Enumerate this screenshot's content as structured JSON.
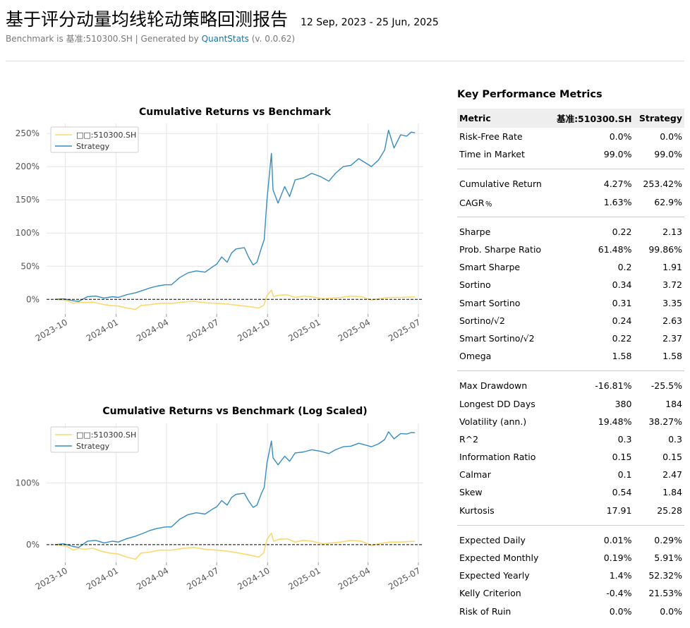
{
  "header": {
    "title": "基于评分动量均线轮动策略回测报告",
    "dates": "12 Sep, 2023 - 25 Jun, 2025",
    "subtitle_prefix": "Benchmark is 基准:510300.SH | Generated by ",
    "subtitle_link": "QuantStats",
    "subtitle_suffix": " (v. 0.0.62)"
  },
  "colors": {
    "benchmark": "#fcd86e",
    "strategy": "#348dc1",
    "grid": "#e5e5e5"
  },
  "metrics": {
    "title": "Key Performance Metrics",
    "columns": [
      "Metric",
      "基准:510300.SH",
      "Strategy"
    ],
    "groups": [
      [
        [
          "Risk-Free Rate",
          "0.0%",
          "0.0%"
        ],
        [
          "Time in Market",
          "99.0%",
          "99.0%"
        ]
      ],
      [
        [
          "Cumulative Return",
          "4.27%",
          "253.42%"
        ],
        [
          "CAGR﹪",
          "1.63%",
          "62.9%"
        ]
      ],
      [
        [
          "Sharpe",
          "0.22",
          "2.13"
        ],
        [
          "Prob. Sharpe Ratio",
          "61.48%",
          "99.86%"
        ],
        [
          "Smart Sharpe",
          "0.2",
          "1.91"
        ],
        [
          "Sortino",
          "0.34",
          "3.72"
        ],
        [
          "Smart Sortino",
          "0.31",
          "3.35"
        ],
        [
          "Sortino/√2",
          "0.24",
          "2.63"
        ],
        [
          "Smart Sortino/√2",
          "0.22",
          "2.37"
        ],
        [
          "Omega",
          "1.58",
          "1.58"
        ]
      ],
      [
        [
          "Max Drawdown",
          "-16.81%",
          "-25.5%"
        ],
        [
          "Longest DD Days",
          "380",
          "184"
        ],
        [
          "Volatility (ann.)",
          "19.48%",
          "38.27%"
        ],
        [
          "R^2",
          "0.3",
          "0.3"
        ],
        [
          "Information Ratio",
          "0.15",
          "0.15"
        ],
        [
          "Calmar",
          "0.1",
          "2.47"
        ],
        [
          "Skew",
          "0.54",
          "1.84"
        ],
        [
          "Kurtosis",
          "17.91",
          "25.28"
        ]
      ],
      [
        [
          "Expected Daily",
          "0.01%",
          "0.29%"
        ],
        [
          "Expected Monthly",
          "0.19%",
          "5.91%"
        ],
        [
          "Expected Yearly",
          "1.4%",
          "52.32%"
        ],
        [
          "Kelly Criterion",
          "-0.4%",
          "21.53%"
        ],
        [
          "Risk of Ruin",
          "0.0%",
          "0.0%"
        ]
      ]
    ]
  },
  "chart_data": [
    {
      "type": "line",
      "title": "Cumulative Returns vs Benchmark",
      "scale": "linear",
      "xlabel": "",
      "ylabel": "",
      "ylim": [
        -22,
        265
      ],
      "y_ticks": [
        0,
        50,
        100,
        150,
        200,
        250
      ],
      "y_tick_labels": [
        "0%",
        "50%",
        "100%",
        "150%",
        "200%",
        "250%"
      ],
      "x_ticks": [
        "2023-10",
        "2024-01",
        "2024-04",
        "2024-07",
        "2024-10",
        "2025-01",
        "2025-04",
        "2025-07"
      ],
      "x_tick_dates": [
        "2023-10-01",
        "2024-01-01",
        "2024-04-01",
        "2024-07-01",
        "2024-10-01",
        "2025-01-01",
        "2025-04-01",
        "2025-07-01"
      ],
      "xlim": [
        "2023-08-28",
        "2025-07-10"
      ],
      "legend": "top-left",
      "grid": true,
      "baseline": 0,
      "series": [
        {
          "name": "□□:510300.SH",
          "color": "#fcd86e",
          "points": [
            [
              "2023-09-12",
              0
            ],
            [
              "2023-09-25",
              -1
            ],
            [
              "2023-10-05",
              -2
            ],
            [
              "2023-10-15",
              -6
            ],
            [
              "2023-10-25",
              -4
            ],
            [
              "2023-11-05",
              -5
            ],
            [
              "2023-11-20",
              -4
            ],
            [
              "2023-12-05",
              -7
            ],
            [
              "2023-12-20",
              -9
            ],
            [
              "2024-01-05",
              -10
            ],
            [
              "2024-01-20",
              -13
            ],
            [
              "2024-02-05",
              -15
            ],
            [
              "2024-02-15",
              -9
            ],
            [
              "2024-03-01",
              -8
            ],
            [
              "2024-03-20",
              -6
            ],
            [
              "2024-04-10",
              -6
            ],
            [
              "2024-05-01",
              -4
            ],
            [
              "2024-05-20",
              -3
            ],
            [
              "2024-06-10",
              -5
            ],
            [
              "2024-07-01",
              -6
            ],
            [
              "2024-07-20",
              -7
            ],
            [
              "2024-08-10",
              -9
            ],
            [
              "2024-08-30",
              -11
            ],
            [
              "2024-09-15",
              -13
            ],
            [
              "2024-09-24",
              -9
            ],
            [
              "2024-09-30",
              6
            ],
            [
              "2024-10-08",
              14
            ],
            [
              "2024-10-12",
              4
            ],
            [
              "2024-10-20",
              6
            ],
            [
              "2024-11-05",
              7
            ],
            [
              "2024-11-20",
              3
            ],
            [
              "2024-12-05",
              5
            ],
            [
              "2024-12-20",
              4
            ],
            [
              "2025-01-10",
              1
            ],
            [
              "2025-01-25",
              2
            ],
            [
              "2025-02-10",
              3
            ],
            [
              "2025-03-01",
              5
            ],
            [
              "2025-03-20",
              4
            ],
            [
              "2025-04-07",
              -1
            ],
            [
              "2025-04-20",
              1
            ],
            [
              "2025-05-10",
              3
            ],
            [
              "2025-05-30",
              3
            ],
            [
              "2025-06-25",
              4
            ]
          ]
        },
        {
          "name": "Strategy",
          "color": "#348dc1",
          "points": [
            [
              "2023-09-12",
              0
            ],
            [
              "2023-09-28",
              1
            ],
            [
              "2023-10-15",
              -2
            ],
            [
              "2023-10-25",
              -3
            ],
            [
              "2023-11-10",
              4
            ],
            [
              "2023-11-25",
              5
            ],
            [
              "2023-12-10",
              2
            ],
            [
              "2023-12-25",
              4
            ],
            [
              "2024-01-05",
              3
            ],
            [
              "2024-01-20",
              7
            ],
            [
              "2024-02-05",
              10
            ],
            [
              "2024-02-20",
              14
            ],
            [
              "2024-03-01",
              17
            ],
            [
              "2024-03-15",
              20
            ],
            [
              "2024-03-30",
              22
            ],
            [
              "2024-04-10",
              22
            ],
            [
              "2024-04-25",
              33
            ],
            [
              "2024-05-10",
              40
            ],
            [
              "2024-05-25",
              43
            ],
            [
              "2024-06-10",
              41
            ],
            [
              "2024-06-25",
              50
            ],
            [
              "2024-07-01",
              53
            ],
            [
              "2024-07-10",
              64
            ],
            [
              "2024-07-20",
              56
            ],
            [
              "2024-07-28",
              70
            ],
            [
              "2024-08-05",
              76
            ],
            [
              "2024-08-20",
              78
            ],
            [
              "2024-08-28",
              63
            ],
            [
              "2024-09-05",
              52
            ],
            [
              "2024-09-12",
              56
            ],
            [
              "2024-09-20",
              78
            ],
            [
              "2024-09-25",
              90
            ],
            [
              "2024-09-30",
              150
            ],
            [
              "2024-10-08",
              220
            ],
            [
              "2024-10-11",
              165
            ],
            [
              "2024-10-20",
              145
            ],
            [
              "2024-11-01",
              170
            ],
            [
              "2024-11-10",
              155
            ],
            [
              "2024-11-20",
              180
            ],
            [
              "2024-12-05",
              183
            ],
            [
              "2024-12-20",
              190
            ],
            [
              "2025-01-05",
              185
            ],
            [
              "2025-01-20",
              178
            ],
            [
              "2025-02-01",
              190
            ],
            [
              "2025-02-15",
              200
            ],
            [
              "2025-03-01",
              202
            ],
            [
              "2025-03-15",
              212
            ],
            [
              "2025-03-25",
              207
            ],
            [
              "2025-04-07",
              200
            ],
            [
              "2025-04-20",
              210
            ],
            [
              "2025-05-01",
              225
            ],
            [
              "2025-05-08",
              255
            ],
            [
              "2025-05-18",
              228
            ],
            [
              "2025-05-30",
              248
            ],
            [
              "2025-06-10",
              246
            ],
            [
              "2025-06-18",
              252
            ],
            [
              "2025-06-25",
              251
            ]
          ]
        }
      ]
    },
    {
      "type": "line",
      "title": "Cumulative Returns vs Benchmark (Log Scaled)",
      "scale": "log",
      "xlabel": "",
      "ylabel": "",
      "y_ticks": [
        0,
        100
      ],
      "y_tick_labels": [
        "0%",
        "100%"
      ],
      "x_ticks": [
        "2023-10",
        "2024-01",
        "2024-04",
        "2024-07",
        "2024-10",
        "2025-01",
        "2025-04",
        "2025-07"
      ],
      "x_tick_dates": [
        "2023-10-01",
        "2024-01-01",
        "2024-04-01",
        "2024-07-01",
        "2024-10-01",
        "2025-01-01",
        "2025-04-01",
        "2025-07-01"
      ],
      "xlim": [
        "2023-08-28",
        "2025-07-10"
      ],
      "legend": "top-left",
      "grid": true,
      "baseline": 0,
      "series_ref": "same data as first chart, log(1+r) scale"
    }
  ]
}
